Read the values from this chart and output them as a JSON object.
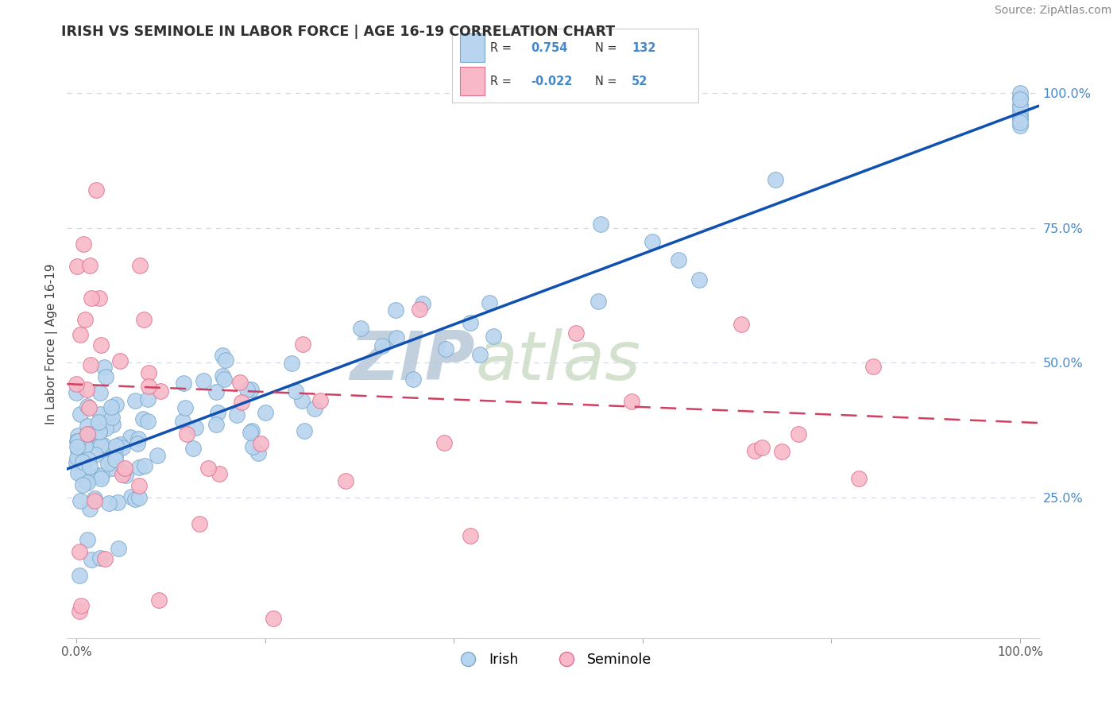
{
  "title": "IRISH VS SEMINOLE IN LABOR FORCE | AGE 16-19 CORRELATION CHART",
  "source_text": "Source: ZipAtlas.com",
  "ylabel": "In Labor Force | Age 16-19",
  "xlim": [
    -0.01,
    1.02
  ],
  "ylim": [
    -0.01,
    1.08
  ],
  "xtick_positions": [
    0.0,
    0.2,
    0.4,
    0.6,
    0.8,
    1.0
  ],
  "xtick_labels": [
    "0.0%",
    "",
    "",
    "",
    "",
    "100.0%"
  ],
  "ytick_positions": [
    0.25,
    0.5,
    0.75,
    1.0
  ],
  "ytick_labels": [
    "25.0%",
    "50.0%",
    "75.0%",
    "100.0%"
  ],
  "legend_irish": "Irish",
  "legend_seminole": "Seminole",
  "R_irish": 0.754,
  "N_irish": 132,
  "R_seminole": -0.022,
  "N_seminole": 52,
  "irish_color": "#b8d4ee",
  "irish_edge_color": "#7aaace",
  "seminole_color": "#f8b8c8",
  "seminole_edge_color": "#e07090",
  "irish_line_color": "#1050b0",
  "seminole_line_color": "#d04060",
  "watermark_color": "#ccdcec",
  "background_color": "#ffffff",
  "grid_color": "#d0d8e8",
  "title_color": "#303030",
  "ylabel_color": "#404040",
  "ytick_color": "#4488cc",
  "xtick_color": "#555555",
  "source_color": "#888888"
}
